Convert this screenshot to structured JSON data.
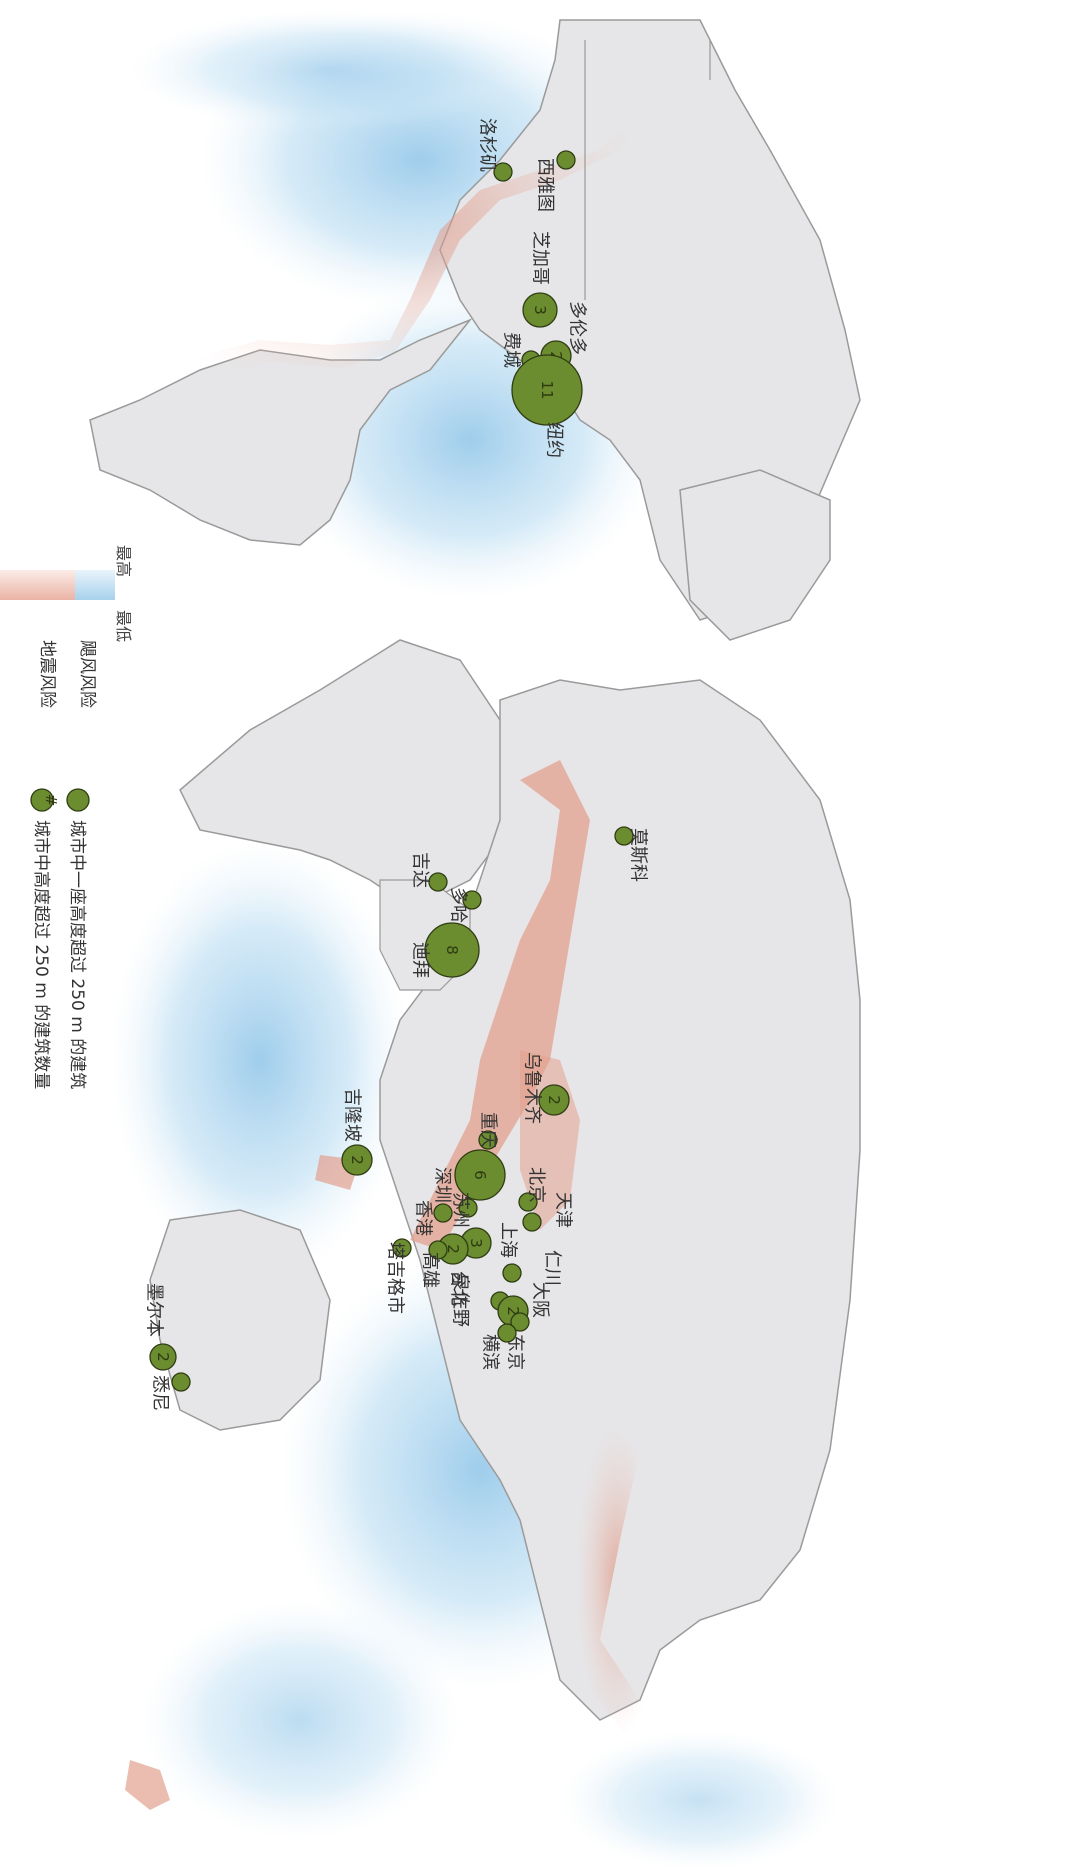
{
  "legend": {
    "single_building": "城市中一座高度超过 250 m 的建筑",
    "count_buildings": "城市中高度超过 250 m 的建筑数量",
    "count_symbol": "#",
    "typhoon_risk": "飓风风险",
    "earthquake_risk": "地震风险",
    "highest": "最高",
    "lowest": "最低"
  },
  "colors": {
    "city_fill": "#6b8c2f",
    "city_stroke": "#2f3d14",
    "land": "#e6e6e8",
    "border": "#8a8a8a",
    "ocean_hazard": "#a9d2ec",
    "quake_hazard": "#e3a08e"
  },
  "cities": [
    {
      "name": "洛杉矶",
      "count": ""
    },
    {
      "name": "西雅图",
      "count": ""
    },
    {
      "name": "芝加哥",
      "count": "3"
    },
    {
      "name": "多伦多",
      "count": "2"
    },
    {
      "name": "费城",
      "count": ""
    },
    {
      "name": "纽约",
      "count": "11"
    },
    {
      "name": "莫斯科",
      "count": ""
    },
    {
      "name": "吉达",
      "count": ""
    },
    {
      "name": "多哈",
      "count": ""
    },
    {
      "name": "迪拜",
      "count": "8"
    },
    {
      "name": "乌鲁木齐",
      "count": "2"
    },
    {
      "name": "吉隆坡",
      "count": "2"
    },
    {
      "name": "重庆",
      "count": ""
    },
    {
      "name": "深圳",
      "count": "6"
    },
    {
      "name": "苏州",
      "count": ""
    },
    {
      "name": "香港",
      "count": ""
    },
    {
      "name": "北京",
      "count": ""
    },
    {
      "name": "天津",
      "count": ""
    },
    {
      "name": "上海",
      "count": "3"
    },
    {
      "name": "仁川",
      "count": ""
    },
    {
      "name": "台北",
      "count": "2"
    },
    {
      "name": "高雄",
      "count": ""
    },
    {
      "name": "塔吉格市",
      "count": ""
    },
    {
      "name": "泉佐野",
      "count": ""
    },
    {
      "name": "大阪",
      "count": "2"
    },
    {
      "name": "东京",
      "count": ""
    },
    {
      "name": "横滨",
      "count": ""
    },
    {
      "name": "墨尔本",
      "count": "2"
    },
    {
      "name": "悉尼",
      "count": ""
    }
  ]
}
